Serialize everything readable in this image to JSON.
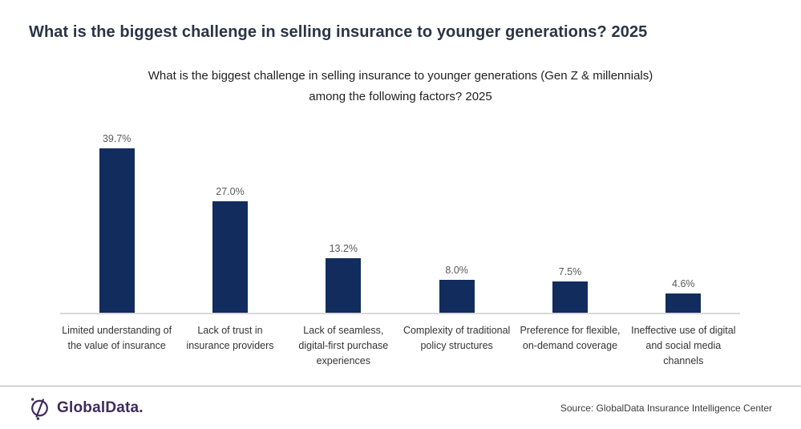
{
  "header": {
    "title": "What is the biggest challenge in selling insurance to younger generations? 2025"
  },
  "chart_data": {
    "type": "bar",
    "title": "What is the biggest challenge in selling insurance to younger generations (Gen Z & millennials) among the following factors? 2025",
    "categories": [
      "Limited understanding of the value of insurance",
      "Lack of trust in insurance providers",
      "Lack of seamless, digital-first purchase experiences",
      "Complexity of traditional policy structures",
      "Preference for flexible, on-demand coverage",
      "Ineffective use of digital and social media channels"
    ],
    "values": [
      39.7,
      27.0,
      13.2,
      8.0,
      7.5,
      4.6
    ],
    "value_labels": [
      "39.7%",
      "27.0%",
      "13.2%",
      "8.0%",
      "7.5%",
      "4.6%"
    ],
    "xlabel": "",
    "ylabel": "",
    "ylim": [
      0,
      42
    ],
    "grid": false,
    "legend": false,
    "bar_color": "#122d5d",
    "value_label_color": "#595959",
    "axis_line_color": "#d9d9d9"
  },
  "footer": {
    "logo_text": "GlobalData.",
    "logo_icon": "globaldata-globe-icon",
    "brand_color": "#3e2b5e",
    "source": "Source: GlobalData Insurance Intelligence Center"
  }
}
